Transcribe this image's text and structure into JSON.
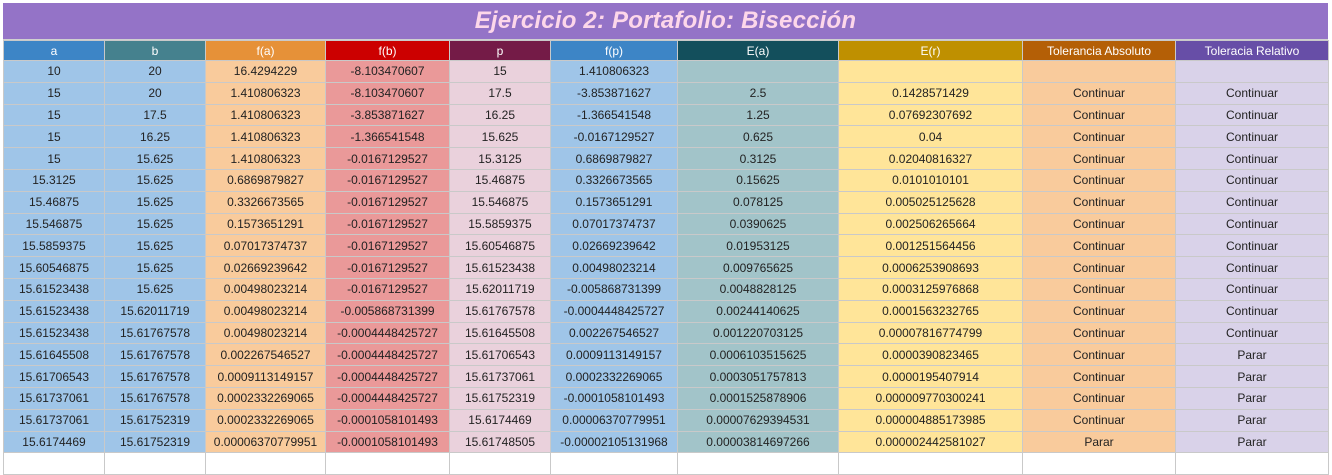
{
  "title": "Ejercicio 2: Portafolio: Bisección",
  "columns": [
    {
      "label": "a",
      "color": "#3d85c6"
    },
    {
      "label": "b",
      "color": "#45818e"
    },
    {
      "label": "f(a)",
      "color": "#e69138"
    },
    {
      "label": "f(b)",
      "color": "#cc0000"
    },
    {
      "label": "p",
      "color": "#741b47"
    },
    {
      "label": "f(p)",
      "color": "#3d85c6"
    },
    {
      "label": "E(a)",
      "color": "#134f5c"
    },
    {
      "label": "E(r)",
      "color": "#bf9000"
    },
    {
      "label": "Tolerancia Absoluto",
      "color": "#b45f06"
    },
    {
      "label": "Toleracia Relativo",
      "color": "#674ea7"
    }
  ],
  "rows": [
    [
      "10",
      "20",
      "16.4294229",
      "-8.103470607",
      "15",
      "1.410806323",
      "",
      "",
      "",
      ""
    ],
    [
      "15",
      "20",
      "1.410806323",
      "-8.103470607",
      "17.5",
      "-3.853871627",
      "2.5",
      "0.1428571429",
      "Continuar",
      "Continuar"
    ],
    [
      "15",
      "17.5",
      "1.410806323",
      "-3.853871627",
      "16.25",
      "-1.366541548",
      "1.25",
      "0.07692307692",
      "Continuar",
      "Continuar"
    ],
    [
      "15",
      "16.25",
      "1.410806323",
      "-1.366541548",
      "15.625",
      "-0.0167129527",
      "0.625",
      "0.04",
      "Continuar",
      "Continuar"
    ],
    [
      "15",
      "15.625",
      "1.410806323",
      "-0.0167129527",
      "15.3125",
      "0.6869879827",
      "0.3125",
      "0.02040816327",
      "Continuar",
      "Continuar"
    ],
    [
      "15.3125",
      "15.625",
      "0.6869879827",
      "-0.0167129527",
      "15.46875",
      "0.3326673565",
      "0.15625",
      "0.0101010101",
      "Continuar",
      "Continuar"
    ],
    [
      "15.46875",
      "15.625",
      "0.3326673565",
      "-0.0167129527",
      "15.546875",
      "0.1573651291",
      "0.078125",
      "0.005025125628",
      "Continuar",
      "Continuar"
    ],
    [
      "15.546875",
      "15.625",
      "0.1573651291",
      "-0.0167129527",
      "15.5859375",
      "0.07017374737",
      "0.0390625",
      "0.002506265664",
      "Continuar",
      "Continuar"
    ],
    [
      "15.5859375",
      "15.625",
      "0.07017374737",
      "-0.0167129527",
      "15.60546875",
      "0.02669239642",
      "0.01953125",
      "0.001251564456",
      "Continuar",
      "Continuar"
    ],
    [
      "15.60546875",
      "15.625",
      "0.02669239642",
      "-0.0167129527",
      "15.61523438",
      "0.00498023214",
      "0.009765625",
      "0.0006253908693",
      "Continuar",
      "Continuar"
    ],
    [
      "15.61523438",
      "15.625",
      "0.00498023214",
      "-0.0167129527",
      "15.62011719",
      "-0.005868731399",
      "0.0048828125",
      "0.0003125976868",
      "Continuar",
      "Continuar"
    ],
    [
      "15.61523438",
      "15.62011719",
      "0.00498023214",
      "-0.005868731399",
      "15.61767578",
      "-0.0004448425727",
      "0.00244140625",
      "0.0001563232765",
      "Continuar",
      "Continuar"
    ],
    [
      "15.61523438",
      "15.61767578",
      "0.00498023214",
      "-0.0004448425727",
      "15.61645508",
      "0.002267546527",
      "0.001220703125",
      "0.00007816774799",
      "Continuar",
      "Continuar"
    ],
    [
      "15.61645508",
      "15.61767578",
      "0.002267546527",
      "-0.0004448425727",
      "15.61706543",
      "0.0009113149157",
      "0.0006103515625",
      "0.0000390823465",
      "Continuar",
      "Parar"
    ],
    [
      "15.61706543",
      "15.61767578",
      "0.0009113149157",
      "-0.0004448425727",
      "15.61737061",
      "0.0002332269065",
      "0.0003051757813",
      "0.0000195407914",
      "Continuar",
      "Parar"
    ],
    [
      "15.61737061",
      "15.61767578",
      "0.0002332269065",
      "-0.0004448425727",
      "15.61752319",
      "-0.0001058101493",
      "0.0001525878906",
      "0.000009770300241",
      "Continuar",
      "Parar"
    ],
    [
      "15.61737061",
      "15.61752319",
      "0.0002332269065",
      "-0.0001058101493",
      "15.6174469",
      "0.00006370779951",
      "0.00007629394531",
      "0.000004885173985",
      "Continuar",
      "Parar"
    ],
    [
      "15.6174469",
      "15.61752319",
      "0.00006370779951",
      "-0.0001058101493",
      "15.61748505",
      "-0.00002105131968",
      "0.00003814697266",
      "0.000002442581027",
      "Parar",
      "Parar"
    ]
  ]
}
